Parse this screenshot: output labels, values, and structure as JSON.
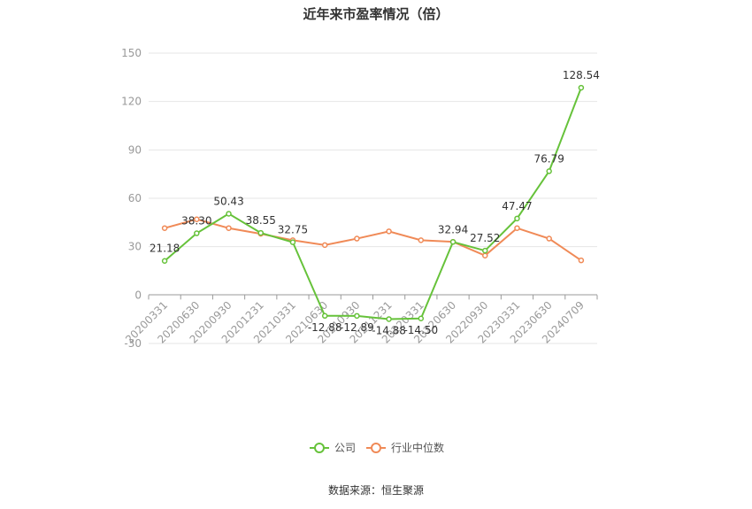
{
  "chart_data": {
    "type": "line",
    "title": "近年来市盈率情况（倍）",
    "categories": [
      "20200331",
      "20200630",
      "20200930",
      "20201231",
      "20210331",
      "20210630",
      "20210930",
      "20211231",
      "20220331",
      "20220630",
      "20220930",
      "20230331",
      "20230630",
      "20240709"
    ],
    "ylim": [
      -30,
      150
    ],
    "yticks": [
      -30,
      0,
      30,
      60,
      90,
      120,
      150
    ],
    "grid": true,
    "legend_position": "bottom-center",
    "series": [
      {
        "name": "公司",
        "color": "#66c23a",
        "values": [
          21.18,
          38.3,
          50.43,
          38.55,
          32.75,
          -12.88,
          -12.89,
          -14.88,
          -14.5,
          32.94,
          27.52,
          47.47,
          76.79,
          128.54
        ],
        "labels": [
          "21.18",
          "38.30",
          "50.43",
          "38.55",
          "32.75",
          "-12.88",
          "-12.89",
          "-14.88",
          "-14.50",
          "32.94",
          "27.52",
          "47.47",
          "76.79",
          "128.54"
        ]
      },
      {
        "name": "行业中位数",
        "color": "#f08a57",
        "values": [
          41.5,
          47.0,
          41.5,
          38.0,
          34.0,
          31.0,
          35.0,
          39.5,
          34.0,
          33.0,
          24.5,
          41.5,
          35.0,
          21.5
        ]
      }
    ],
    "source": "数据来源：恒生聚源"
  }
}
